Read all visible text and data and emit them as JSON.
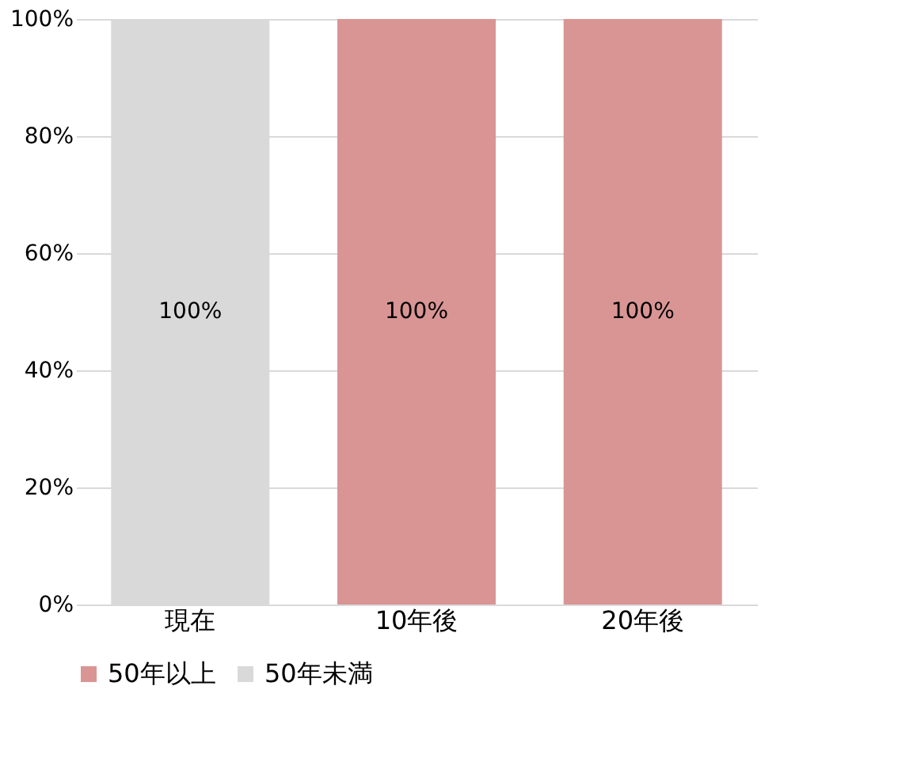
{
  "chart_data": {
    "type": "bar",
    "stacked": true,
    "categories": [
      "現在",
      "10年後",
      "20年後"
    ],
    "series": [
      {
        "name": "50年以上",
        "color": "#d99594",
        "values": [
          0,
          100,
          100
        ],
        "value_labels": [
          null,
          "100%",
          "100%"
        ]
      },
      {
        "name": "50年未満",
        "color": "#d9d9d9",
        "values": [
          100,
          0,
          0
        ],
        "value_labels": [
          "100%",
          null,
          null
        ]
      }
    ],
    "ylim": [
      0,
      100
    ],
    "yticks": [
      {
        "value": 0,
        "label": "0%"
      },
      {
        "value": 20,
        "label": "20%"
      },
      {
        "value": 40,
        "label": "40%"
      },
      {
        "value": 60,
        "label": "60%"
      },
      {
        "value": 80,
        "label": "80%"
      },
      {
        "value": 100,
        "label": "100%"
      }
    ],
    "grid": "y",
    "legend": "bottom"
  }
}
